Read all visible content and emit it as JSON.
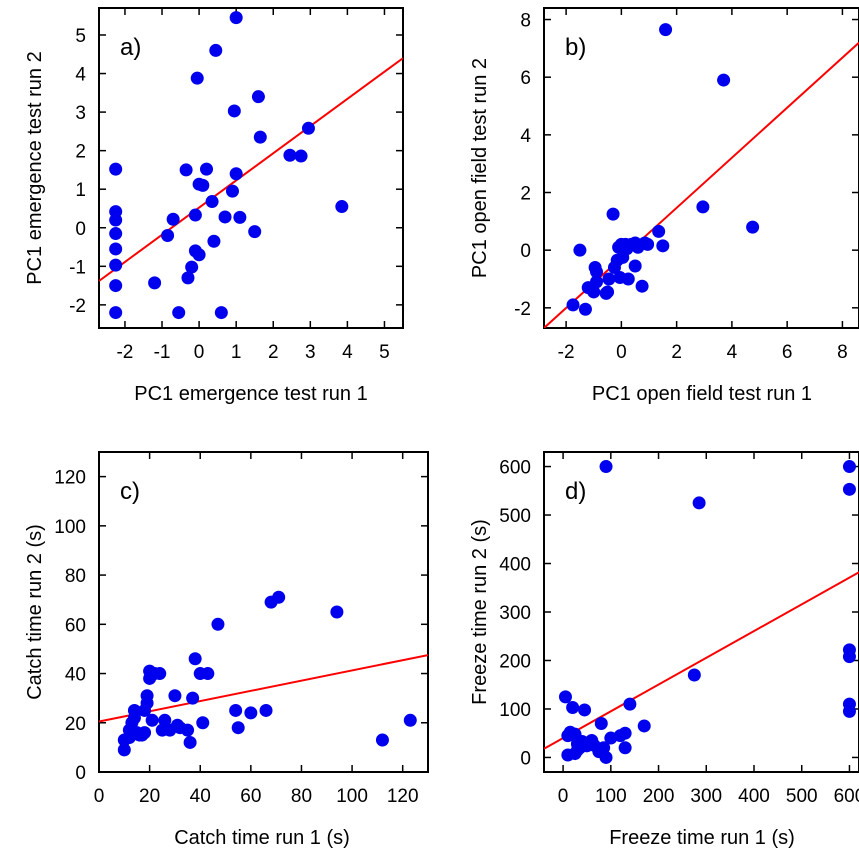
{
  "chart_data": [
    {
      "type": "scatter",
      "panel_label": "a)",
      "xlabel": "PC1 emergence test run 1",
      "ylabel": "PC1 emergence test run 2",
      "xlim": [
        -2.7,
        5.5
      ],
      "ylim": [
        -2.6,
        5.7
      ],
      "xticks": [
        -2,
        -1,
        0,
        1,
        2,
        3,
        4,
        5
      ],
      "yticks": [
        -2,
        -1,
        0,
        1,
        2,
        3,
        4,
        5
      ],
      "points_color": "#0000ee",
      "line_color": "#ff0000",
      "regression_line": [
        [
          -2.7,
          -1.38
        ],
        [
          5.5,
          4.4
        ]
      ],
      "points": [
        [
          -2.25,
          1.52
        ],
        [
          -2.25,
          0.42
        ],
        [
          -2.25,
          0.2
        ],
        [
          -2.25,
          -0.15
        ],
        [
          -2.25,
          -0.55
        ],
        [
          -2.25,
          -0.97
        ],
        [
          -2.25,
          -1.5
        ],
        [
          -2.25,
          -2.2
        ],
        [
          -1.2,
          -1.43
        ],
        [
          -0.85,
          -0.2
        ],
        [
          -0.7,
          0.22
        ],
        [
          -0.55,
          -2.2
        ],
        [
          -0.35,
          1.5
        ],
        [
          -0.3,
          -1.3
        ],
        [
          -0.2,
          -1.02
        ],
        [
          -0.1,
          0.33
        ],
        [
          -0.1,
          -0.6
        ],
        [
          -0.05,
          3.88
        ],
        [
          0.0,
          1.13
        ],
        [
          0.0,
          -0.7
        ],
        [
          0.1,
          1.1
        ],
        [
          0.2,
          1.52
        ],
        [
          0.35,
          0.68
        ],
        [
          0.4,
          -0.35
        ],
        [
          0.45,
          4.6
        ],
        [
          0.6,
          -2.2
        ],
        [
          0.7,
          0.28
        ],
        [
          0.9,
          0.95
        ],
        [
          0.95,
          3.03
        ],
        [
          1.0,
          1.4
        ],
        [
          1.0,
          5.45
        ],
        [
          1.1,
          0.27
        ],
        [
          1.5,
          -0.1
        ],
        [
          1.6,
          3.4
        ],
        [
          1.65,
          2.35
        ],
        [
          2.45,
          1.88
        ],
        [
          2.75,
          1.86
        ],
        [
          2.95,
          2.58
        ],
        [
          3.85,
          0.55
        ]
      ]
    },
    {
      "type": "scatter",
      "panel_label": "b)",
      "xlabel": "PC1 open field test run 1",
      "ylabel": "PC1 open field test run 2",
      "xlim": [
        -2.8,
        8.6
      ],
      "ylim": [
        -2.7,
        8.4
      ],
      "xticks": [
        -2,
        0,
        2,
        4,
        6,
        8
      ],
      "yticks": [
        -2,
        0,
        2,
        4,
        6,
        8
      ],
      "points_color": "#0000ee",
      "line_color": "#ff0000",
      "regression_line": [
        [
          -2.8,
          -2.7
        ],
        [
          8.6,
          7.2
        ]
      ],
      "points": [
        [
          -1.75,
          -1.9
        ],
        [
          -1.3,
          -2.05
        ],
        [
          -1.5,
          0.0
        ],
        [
          -1.2,
          -1.3
        ],
        [
          -1.0,
          -1.45
        ],
        [
          -0.95,
          -0.6
        ],
        [
          -0.9,
          -0.75
        ],
        [
          -0.9,
          -1.1
        ],
        [
          -0.5,
          -1.45
        ],
        [
          -0.55,
          -1.5
        ],
        [
          -0.45,
          -1.0
        ],
        [
          -0.3,
          1.25
        ],
        [
          -0.25,
          -0.6
        ],
        [
          -0.15,
          -0.35
        ],
        [
          -0.1,
          0.1
        ],
        [
          -0.05,
          -0.95
        ],
        [
          0.0,
          0.2
        ],
        [
          0.05,
          -0.25
        ],
        [
          0.15,
          0.2
        ],
        [
          0.2,
          0.05
        ],
        [
          0.25,
          -1.0
        ],
        [
          0.35,
          0.2
        ],
        [
          0.5,
          0.25
        ],
        [
          0.5,
          -0.55
        ],
        [
          0.6,
          0.1
        ],
        [
          0.75,
          -1.25
        ],
        [
          0.85,
          0.25
        ],
        [
          0.95,
          0.2
        ],
        [
          1.35,
          0.65
        ],
        [
          1.5,
          0.15
        ],
        [
          1.6,
          7.65
        ],
        [
          2.95,
          1.5
        ],
        [
          3.7,
          5.9
        ],
        [
          4.75,
          0.8
        ]
      ]
    },
    {
      "type": "scatter",
      "panel_label": "c)",
      "xlabel": "Catch time run 1 (s)",
      "ylabel": "Catch time run 2 (s)",
      "xlim": [
        0,
        130
      ],
      "ylim": [
        0,
        130
      ],
      "xticks": [
        0,
        20,
        40,
        60,
        80,
        100,
        120
      ],
      "yticks": [
        0,
        20,
        40,
        60,
        80,
        100,
        120
      ],
      "points_color": "#0000ee",
      "line_color": "#ff0000",
      "regression_line": [
        [
          0,
          20.5
        ],
        [
          130,
          47.5
        ]
      ],
      "points": [
        [
          10,
          9
        ],
        [
          10,
          13
        ],
        [
          12,
          14
        ],
        [
          12,
          17
        ],
        [
          13,
          20
        ],
        [
          14,
          22
        ],
        [
          14,
          25
        ],
        [
          15,
          16
        ],
        [
          16,
          15
        ],
        [
          17,
          15
        ],
        [
          18,
          25
        ],
        [
          18,
          16
        ],
        [
          19,
          28
        ],
        [
          19,
          31
        ],
        [
          20,
          38
        ],
        [
          20,
          41
        ],
        [
          21,
          21
        ],
        [
          22,
          40
        ],
        [
          24,
          40
        ],
        [
          25,
          17
        ],
        [
          26,
          21
        ],
        [
          28,
          17
        ],
        [
          30,
          31
        ],
        [
          31,
          19
        ],
        [
          32,
          18
        ],
        [
          35,
          17
        ],
        [
          36,
          12
        ],
        [
          37,
          30
        ],
        [
          38,
          46
        ],
        [
          40,
          40
        ],
        [
          41,
          20
        ],
        [
          43,
          40
        ],
        [
          47,
          60
        ],
        [
          54,
          25
        ],
        [
          55,
          18
        ],
        [
          60,
          24
        ],
        [
          66,
          25
        ],
        [
          68,
          69
        ],
        [
          71,
          71
        ],
        [
          94,
          65
        ],
        [
          112,
          13
        ],
        [
          123,
          21
        ]
      ]
    },
    {
      "type": "scatter",
      "panel_label": "d)",
      "xlabel": "Freeze time run 1 (s)",
      "ylabel": "Freeze time run 2 (s)",
      "xlim": [
        -40,
        620
      ],
      "ylim": [
        -30,
        630
      ],
      "xticks": [
        0,
        100,
        200,
        300,
        400,
        500,
        600
      ],
      "yticks": [
        0,
        100,
        200,
        300,
        400,
        500,
        600
      ],
      "points_color": "#0000ee",
      "line_color": "#ff0000",
      "regression_line": [
        [
          -40,
          18
        ],
        [
          620,
          382
        ]
      ],
      "points": [
        [
          5,
          125
        ],
        [
          10,
          5
        ],
        [
          10,
          45
        ],
        [
          15,
          52
        ],
        [
          20,
          103
        ],
        [
          25,
          8
        ],
        [
          25,
          48
        ],
        [
          30,
          15
        ],
        [
          30,
          28
        ],
        [
          35,
          20
        ],
        [
          40,
          33
        ],
        [
          45,
          98
        ],
        [
          50,
          24
        ],
        [
          60,
          35
        ],
        [
          65,
          25
        ],
        [
          75,
          12
        ],
        [
          80,
          70
        ],
        [
          85,
          20
        ],
        [
          90,
          0
        ],
        [
          90,
          600
        ],
        [
          100,
          40
        ],
        [
          120,
          45
        ],
        [
          130,
          50
        ],
        [
          130,
          20
        ],
        [
          140,
          110
        ],
        [
          170,
          65
        ],
        [
          275,
          170
        ],
        [
          285,
          525
        ],
        [
          600,
          600
        ],
        [
          600,
          553
        ],
        [
          600,
          222
        ],
        [
          600,
          208
        ],
        [
          600,
          110
        ],
        [
          600,
          95
        ]
      ]
    }
  ]
}
